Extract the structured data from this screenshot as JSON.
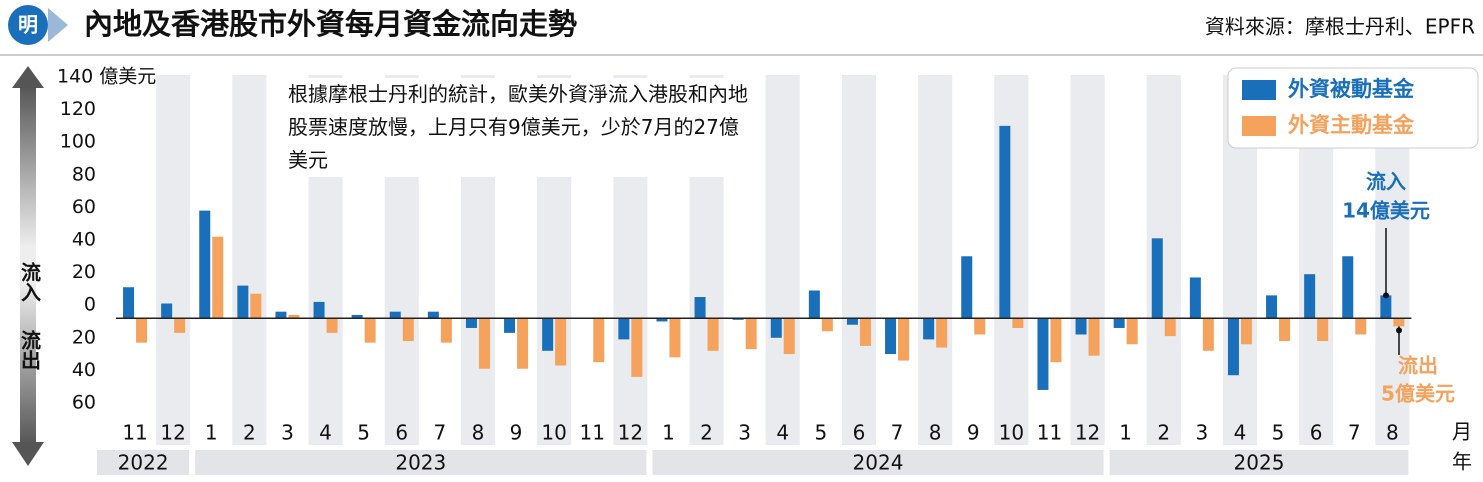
{
  "chart_data": {
    "type": "bar",
    "title": "內地及香港股市外資每月資金流向走勢",
    "source": "資料來源：摩根士丹利、EPFR",
    "inflow_label": "流入",
    "outflow_label": "流出",
    "month_unit": "月",
    "year_unit": "年",
    "annotation": "根據摩根士丹利的統計，歐美外資淨流入港股和內地股票速度放慢，上月只有9億美元，少於7月的27億美元",
    "callouts": [
      {
        "label": "流入",
        "value_label": "14億美元",
        "series": 0
      },
      {
        "label": "流出",
        "value_label": "5億美元",
        "series": 1
      }
    ],
    "categories": [
      "11",
      "12",
      "1",
      "2",
      "3",
      "4",
      "5",
      "6",
      "7",
      "8",
      "9",
      "10",
      "11",
      "12",
      "1",
      "2",
      "3",
      "4",
      "5",
      "6",
      "7",
      "8",
      "9",
      "10",
      "11",
      "12",
      "1",
      "2",
      "3",
      "4",
      "5",
      "6",
      "7",
      "8"
    ],
    "years": [
      "2022",
      "2023",
      "2024",
      "2025"
    ],
    "series": [
      {
        "name": "外資被動基金",
        "color": "#1a6fba",
        "values": [
          19,
          9,
          66,
          20,
          4,
          10,
          2,
          4,
          4,
          -6,
          -9,
          -20,
          0,
          -13,
          -2,
          13,
          -1,
          -12,
          17,
          -4,
          -22,
          -13,
          38,
          118,
          -44,
          -10,
          -6,
          49,
          25,
          -35,
          14,
          27,
          38,
          14
        ]
      },
      {
        "name": "外資主動基金",
        "color": "#f5a25d",
        "values": [
          -15,
          -9,
          50,
          15,
          2,
          -9,
          -15,
          -14,
          -15,
          -31,
          -31,
          -29,
          -27,
          -36,
          -24,
          -20,
          -19,
          -22,
          -8,
          -17,
          -26,
          -18,
          -10,
          -6,
          -27,
          -23,
          -16,
          -11,
          -20,
          -16,
          -14,
          -14,
          -10,
          -5
        ]
      }
    ],
    "ylim": [
      -60,
      140
    ],
    "yticks": [
      {
        "value": -60,
        "label": "60"
      },
      {
        "value": -40,
        "label": "40"
      },
      {
        "value": -20,
        "label": "20"
      },
      0,
      20,
      40,
      60,
      80,
      100,
      120,
      {
        "value": 140,
        "label": "140 億美元"
      }
    ]
  }
}
